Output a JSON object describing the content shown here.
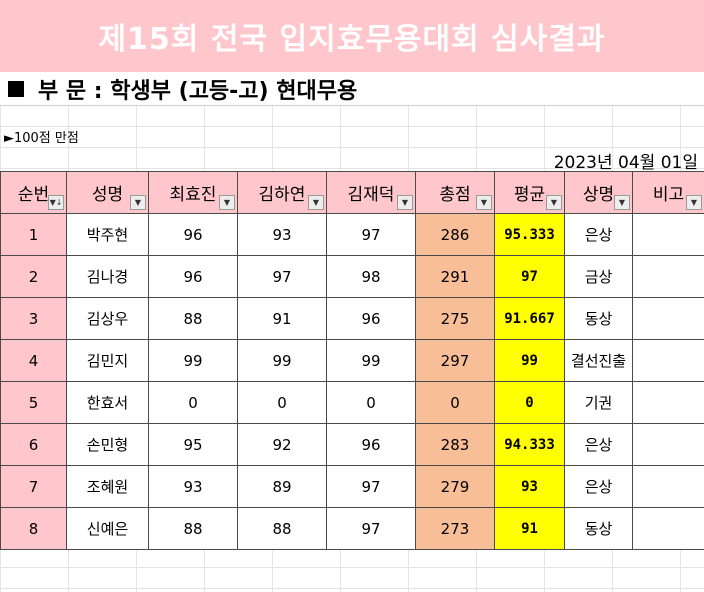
{
  "title": "제15회 전국 입지효무용대회 심사결과",
  "section": "부 문 : 학생부 (고등-고) 현대무용",
  "score_note": "►100점 만점",
  "date": "2023년 04월 01일",
  "columns": [
    "순번",
    "성명",
    "최효진",
    "김하연",
    "김재덕",
    "총점",
    "평균",
    "상명",
    "비고"
  ],
  "filter_icons": [
    "sort-filter-icon",
    "dropdown-icon"
  ],
  "rows": [
    {
      "no": "1",
      "name": "박주현",
      "s1": "96",
      "s2": "93",
      "s3": "97",
      "total": "286",
      "avg": "95.333",
      "award": "은상",
      "note": ""
    },
    {
      "no": "2",
      "name": "김나경",
      "s1": "96",
      "s2": "97",
      "s3": "98",
      "total": "291",
      "avg": "97",
      "award": "금상",
      "note": ""
    },
    {
      "no": "3",
      "name": "김상우",
      "s1": "88",
      "s2": "91",
      "s3": "96",
      "total": "275",
      "avg": "91.667",
      "award": "동상",
      "note": ""
    },
    {
      "no": "4",
      "name": "김민지",
      "s1": "99",
      "s2": "99",
      "s3": "99",
      "total": "297",
      "avg": "99",
      "award": "결선진출",
      "note": ""
    },
    {
      "no": "5",
      "name": "한효서",
      "s1": "0",
      "s2": "0",
      "s3": "0",
      "total": "0",
      "avg": "0",
      "award": "기권",
      "note": ""
    },
    {
      "no": "6",
      "name": "손민형",
      "s1": "95",
      "s2": "92",
      "s3": "96",
      "total": "283",
      "avg": "94.333",
      "award": "은상",
      "note": ""
    },
    {
      "no": "7",
      "name": "조혜원",
      "s1": "93",
      "s2": "89",
      "s3": "97",
      "total": "279",
      "avg": "93",
      "award": "은상",
      "note": ""
    },
    {
      "no": "8",
      "name": "신예은",
      "s1": "88",
      "s2": "88",
      "s3": "97",
      "total": "273",
      "avg": "91",
      "award": "동상",
      "note": ""
    }
  ],
  "colors": {
    "header_pink": "#ffc6cc",
    "total_orange": "#f7be97",
    "avg_yellow": "#ffff00"
  }
}
